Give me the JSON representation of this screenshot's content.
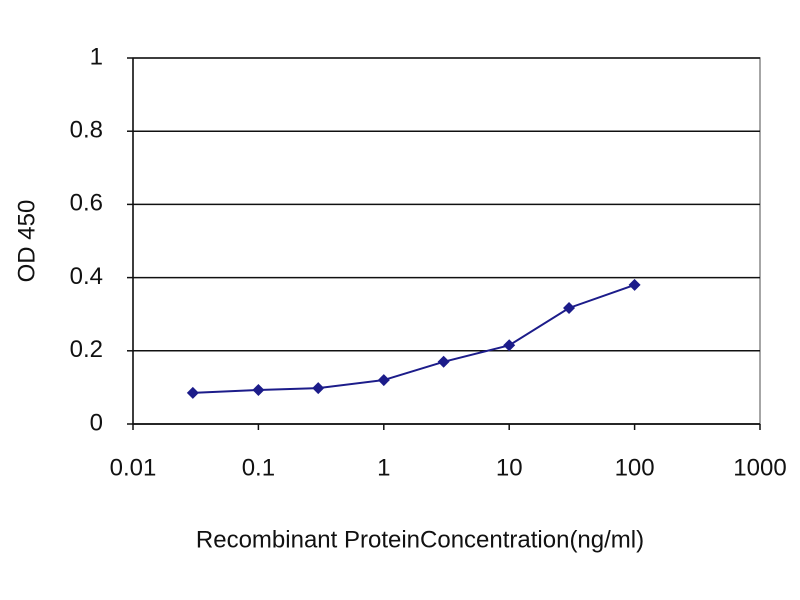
{
  "chart_data": {
    "type": "line",
    "x_label": "Recombinant ProteinConcentration(ng/ml)",
    "y_label": "OD 450",
    "x": [
      0.03,
      0.1,
      0.3,
      1,
      3,
      10,
      30,
      100
    ],
    "series": [
      {
        "name": "OD 450",
        "color": "#1c1c8a",
        "values": [
          0.085,
          0.093,
          0.098,
          0.12,
          0.17,
          0.215,
          0.317,
          0.38
        ]
      }
    ],
    "xlim": [
      0.01,
      1000
    ],
    "xticks": [
      0.01,
      0.1,
      1,
      10,
      100,
      1000
    ],
    "log_x": true,
    "ylim": [
      0,
      1
    ],
    "yticks": [
      0,
      0.2,
      0.4,
      0.6,
      0.8,
      1
    ],
    "grid": true
  }
}
